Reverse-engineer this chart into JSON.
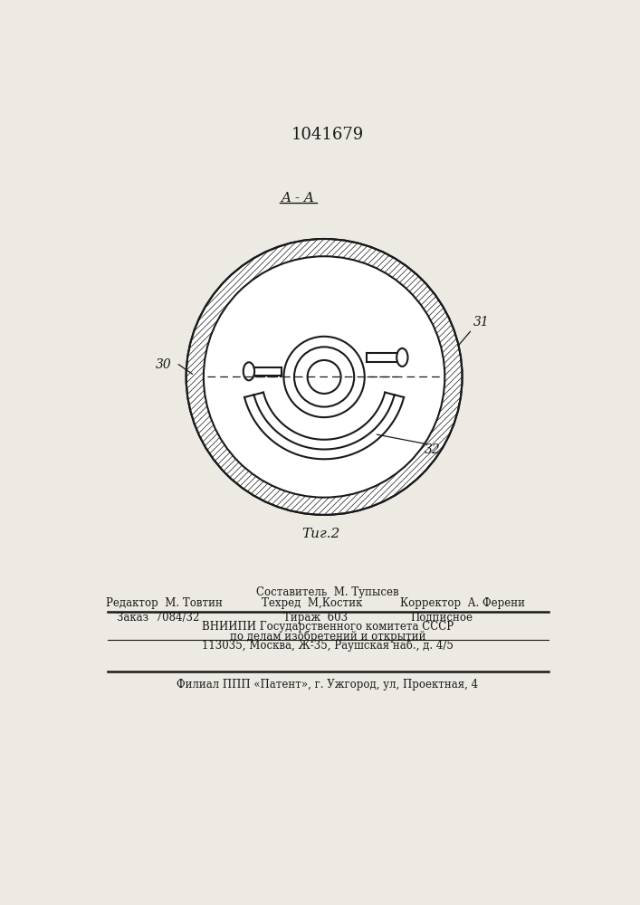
{
  "title": "1041679",
  "fig_label": "Τиг.2",
  "section_label": "A - A",
  "label_30": "30",
  "label_31": "31",
  "label_32": "32",
  "bg_color": "#ede9e3",
  "line_color": "#1a1a1a",
  "footer_line1": "Составитель  М. Тупысев",
  "footer_line2_left": "Редактор  М. Товтин",
  "footer_line2_mid": "Техред  М,Костик",
  "footer_line2_right": "Корректор  А. Ферени",
  "footer_line3_left": "Заказ  7084/32",
  "footer_line3_mid": "Тираж  603",
  "footer_line3_right": "Подписное",
  "footer_line4": "ВНИИПИ Государственного комитета СССР",
  "footer_line5": "по делам изобретений и открытий",
  "footer_line6": "113035, Москва, Ж-35, Раушская наб., д. 4/5",
  "footer_line7": "Филиал ППП «Патент», г. Ужгород, ул, Проектная, 4"
}
